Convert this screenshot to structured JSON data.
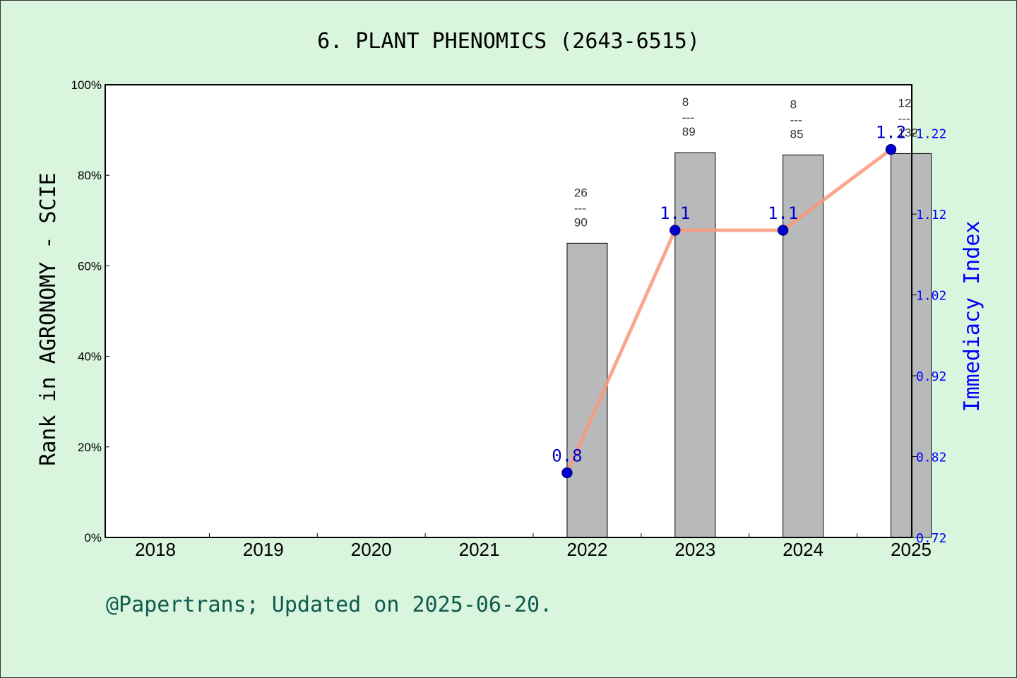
{
  "title": "6. PLANT PHENOMICS (2643-6515)",
  "footer": "@Papertrans; Updated on 2025-06-20.",
  "colors": {
    "background": "#daf5dd",
    "bar": "#b8b9ba",
    "line": "#f8997a",
    "marker": "#0000cc",
    "right_axis": "#0000ff"
  },
  "chart_data": {
    "type": "bar",
    "categories": [
      "2018",
      "2019",
      "2020",
      "2021",
      "2022",
      "2023",
      "2024",
      "2025"
    ],
    "ylabel": "Rank in AGRONOMY - SCIE",
    "y2label": "Immediacy Index",
    "ylim": [
      0,
      100
    ],
    "y_ticks": [
      "0%",
      "20%",
      "40%",
      "60%",
      "80%",
      "100%"
    ],
    "y2lim": [
      0.72,
      1.28
    ],
    "y2_ticks": [
      "0.72",
      "0.82",
      "0.92",
      "1.02",
      "1.12",
      "1.22"
    ],
    "grid": false,
    "series": [
      {
        "kind": "bar",
        "values": [
          null,
          null,
          null,
          null,
          65,
          85,
          84.5,
          84.8
        ],
        "rank_labels": [
          null,
          null,
          null,
          null,
          {
            "top": "26",
            "bottom": "90"
          },
          {
            "top": "8",
            "bottom": "89"
          },
          {
            "top": "8",
            "bottom": "85"
          },
          {
            "top": "12",
            "bottom": "132"
          }
        ],
        "divider": "---"
      },
      {
        "kind": "line",
        "values": [
          null,
          null,
          null,
          null,
          0.8,
          1.1,
          1.1,
          1.2
        ],
        "plotted": [
          null,
          null,
          null,
          null,
          0.8,
          1.1,
          1.1,
          1.2
        ],
        "labels": [
          null,
          null,
          null,
          null,
          "0.8",
          "1.1",
          "1.1",
          "1.2"
        ]
      }
    ]
  }
}
